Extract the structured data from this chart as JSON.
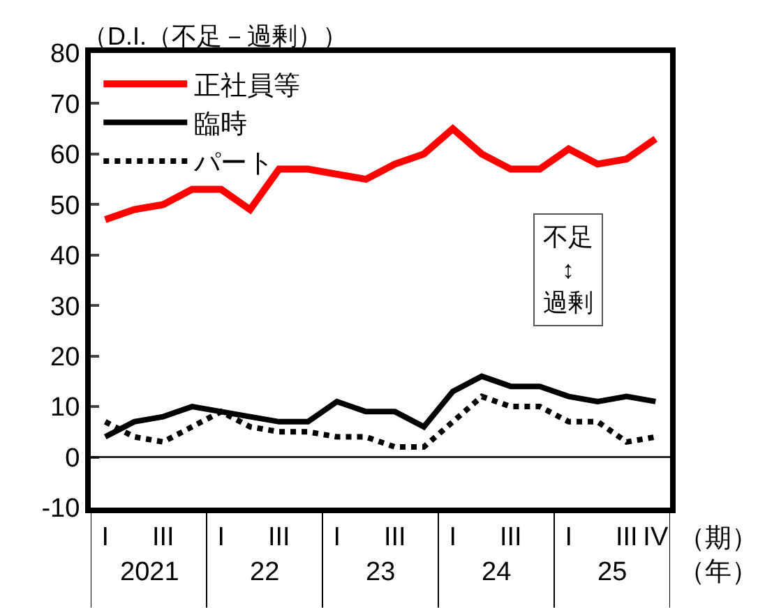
{
  "chart_data": {
    "type": "line",
    "ylabel": "（D.I.（不足－過剰））",
    "categories": [
      "I",
      null,
      "III",
      null,
      "I",
      null,
      "III",
      null,
      "I",
      null,
      "III",
      null,
      "I",
      null,
      "III",
      null,
      "I",
      null,
      "III",
      "IV"
    ],
    "series": [
      {
        "name": "正社員等",
        "color": "#ff0000",
        "values": [
          47,
          49,
          50,
          53,
          53,
          49,
          57,
          57,
          56,
          55,
          58,
          60,
          65,
          60,
          57,
          57,
          61,
          58,
          59,
          63
        ]
      },
      {
        "name": "臨時",
        "color": "#000000",
        "values": [
          4,
          7,
          8,
          10,
          9,
          8,
          7,
          7,
          11,
          9,
          9,
          6,
          13,
          16,
          14,
          14,
          12,
          11,
          12,
          11
        ]
      },
      {
        "name": "パート",
        "color": "#000000",
        "line_style": "dotted",
        "values": [
          7,
          4,
          3,
          6,
          9,
          6,
          5,
          5,
          4,
          4,
          2,
          2,
          7,
          12,
          10,
          10,
          7,
          7,
          3,
          4
        ]
      }
    ],
    "ylim": [
      -10,
      80
    ],
    "yticks": [
      -10,
      0,
      10,
      20,
      30,
      40,
      50,
      60,
      70,
      80
    ],
    "ref_lines": [
      {
        "axis": "y",
        "value": 0,
        "color": "#000000"
      }
    ],
    "annotations": [
      "2021",
      "22",
      "23",
      "24",
      "25",
      "（期）",
      "（年）",
      "不足\n↕\n過剰"
    ],
    "grid": false,
    "legend": "top left",
    "marker": "none",
    "line_style": "solid"
  }
}
